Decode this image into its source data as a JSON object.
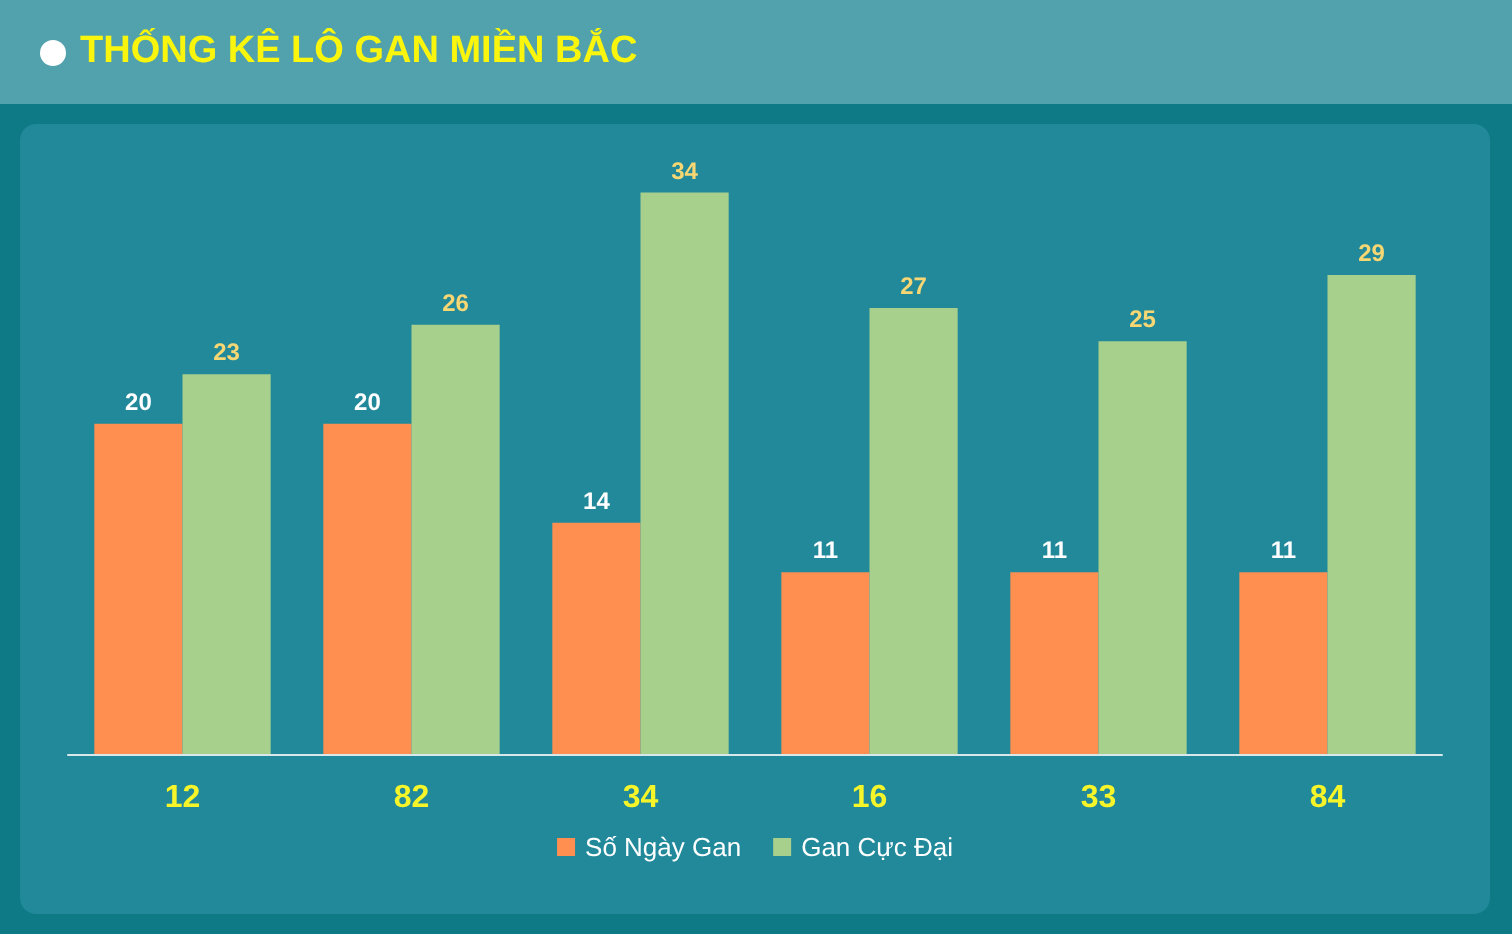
{
  "chart_data": {
    "type": "bar",
    "title": "THỐNG KÊ LÔ GAN MIỀN BẮC",
    "categories": [
      "12",
      "82",
      "34",
      "16",
      "33",
      "84"
    ],
    "series": [
      {
        "name": "Số Ngày Gan",
        "color": "#ff8f50",
        "values": [
          20,
          20,
          14,
          11,
          11,
          11
        ]
      },
      {
        "name": "Gan Cực Đại",
        "color": "#a8d08d",
        "values": [
          23,
          26,
          34,
          27,
          25,
          29
        ]
      }
    ],
    "data_labels": true,
    "legend": "bottom"
  }
}
